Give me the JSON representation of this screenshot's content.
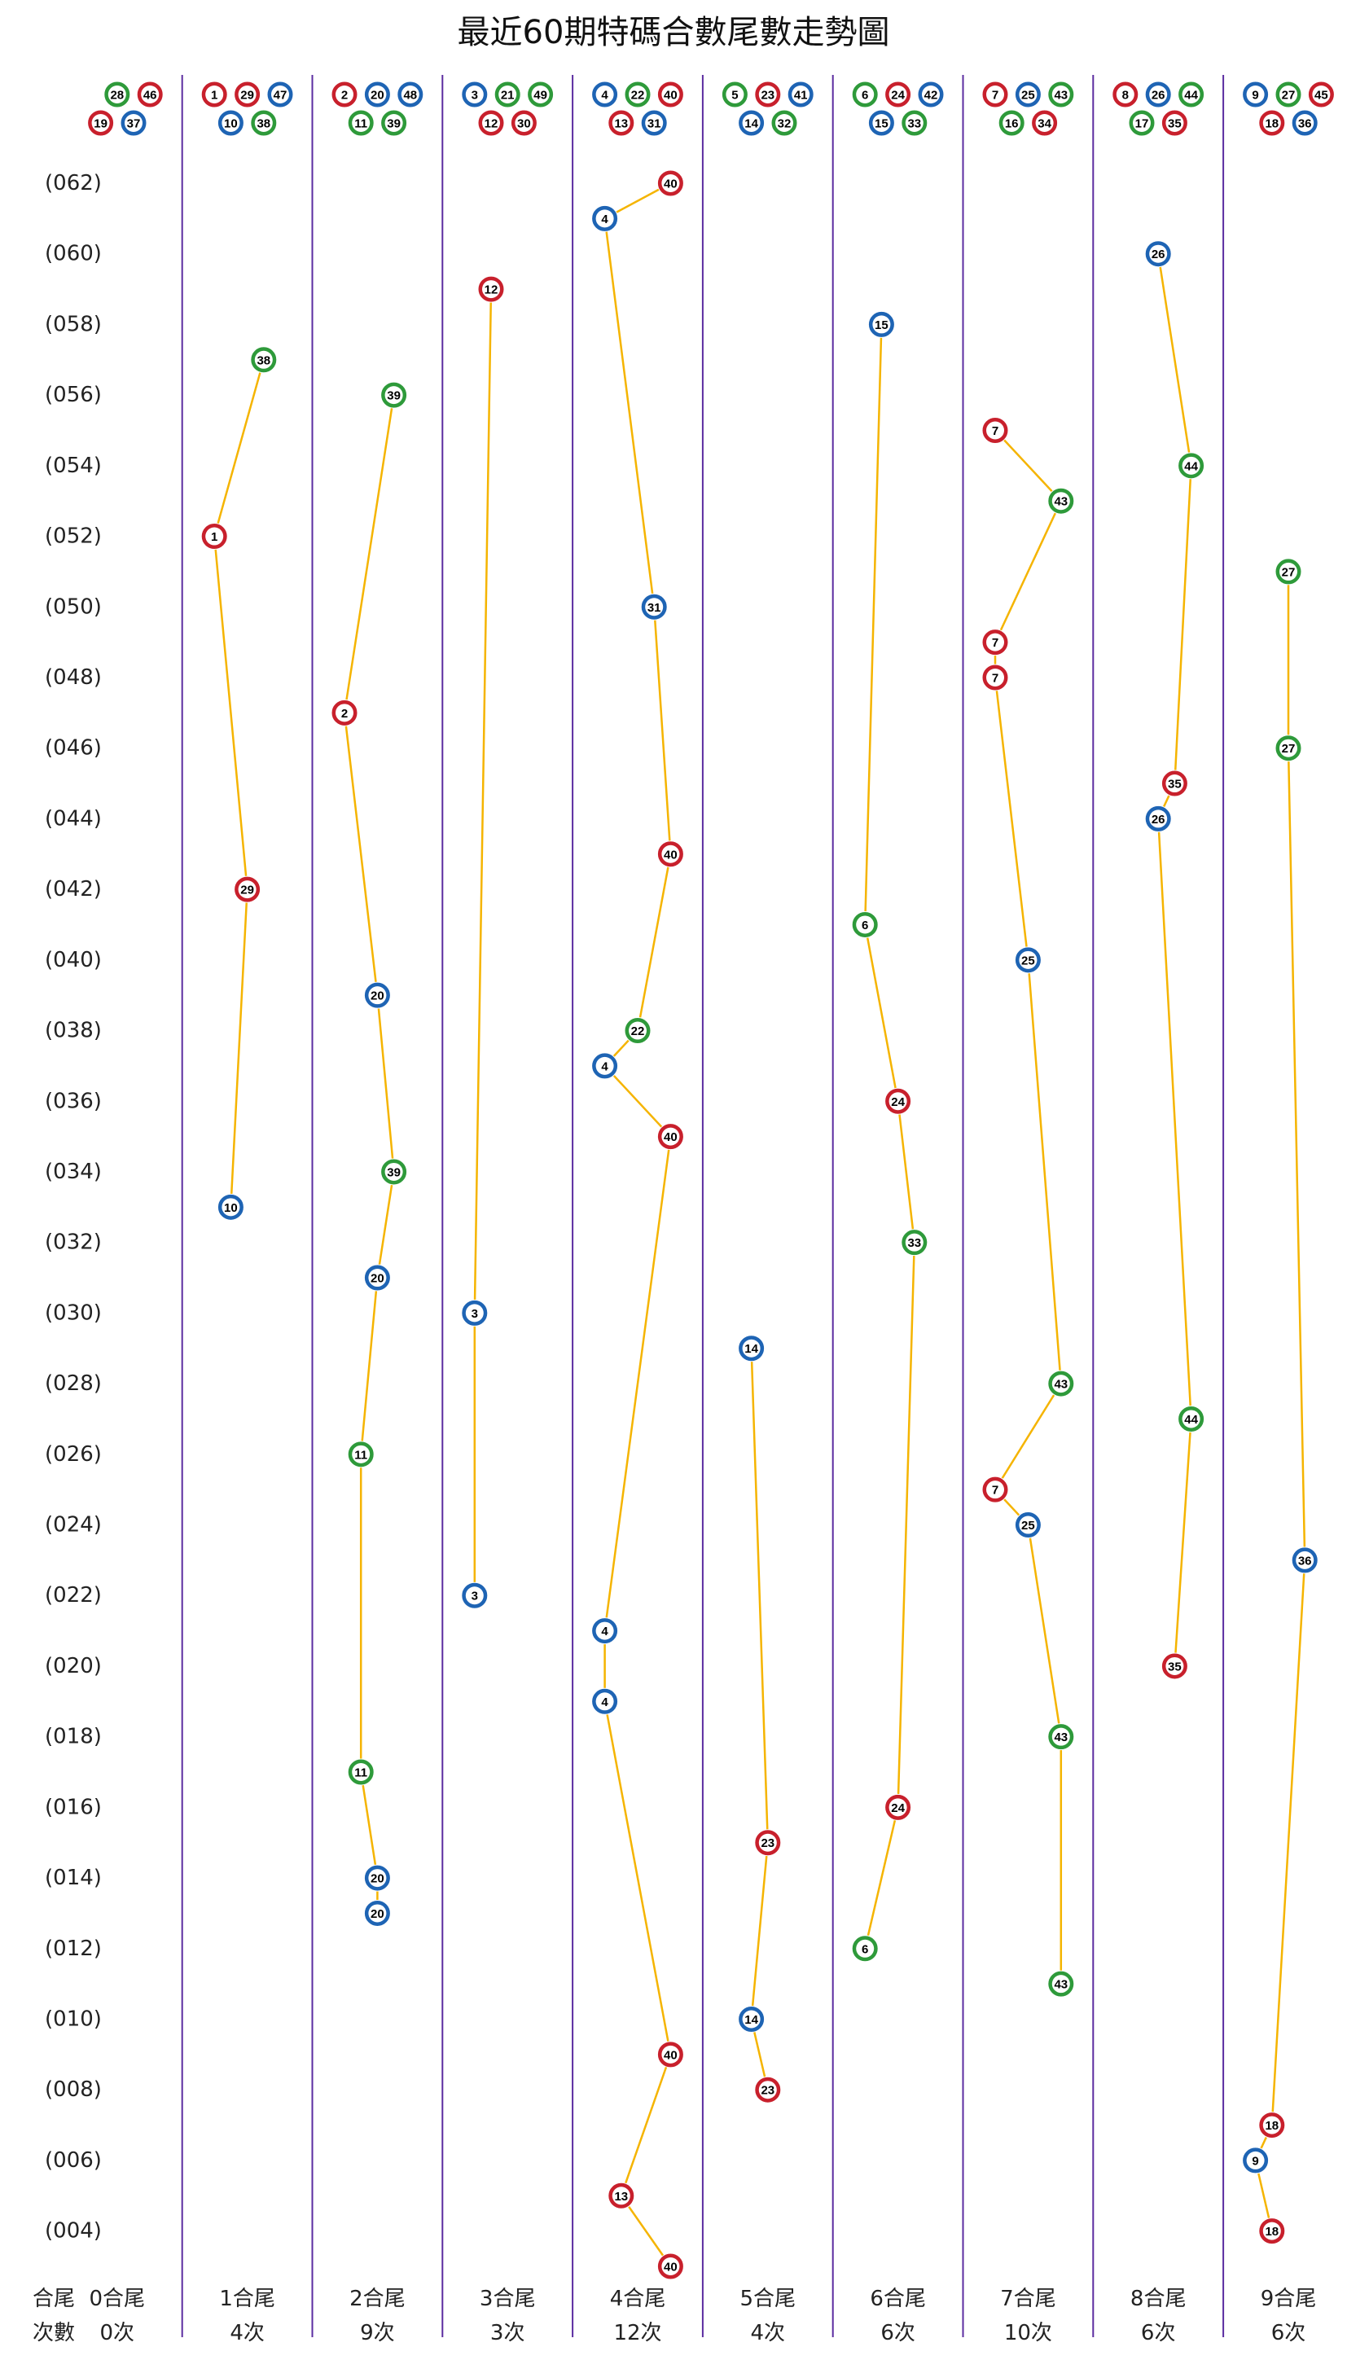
{
  "chart_data": {
    "type": "trend",
    "title": "最近60期特碼合數尾數走勢圖",
    "row_label": "合尾",
    "count_label": "次數",
    "line_color": "#f5b400",
    "separator_color": "#5b2ca0",
    "colors": {
      "red": "#c8202c",
      "blue": "#1e64b4",
      "green": "#2e9a3a"
    },
    "ylim": [
      62,
      3
    ],
    "yticks": [
      {
        "value": 62,
        "label": "(062)"
      },
      {
        "value": 60,
        "label": "(060)"
      },
      {
        "value": 58,
        "label": "(058)"
      },
      {
        "value": 56,
        "label": "(056)"
      },
      {
        "value": 54,
        "label": "(054)"
      },
      {
        "value": 52,
        "label": "(052)"
      },
      {
        "value": 50,
        "label": "(050)"
      },
      {
        "value": 48,
        "label": "(048)"
      },
      {
        "value": 46,
        "label": "(046)"
      },
      {
        "value": 44,
        "label": "(044)"
      },
      {
        "value": 42,
        "label": "(042)"
      },
      {
        "value": 40,
        "label": "(040)"
      },
      {
        "value": 38,
        "label": "(038)"
      },
      {
        "value": 36,
        "label": "(036)"
      },
      {
        "value": 34,
        "label": "(034)"
      },
      {
        "value": 32,
        "label": "(032)"
      },
      {
        "value": 30,
        "label": "(030)"
      },
      {
        "value": 28,
        "label": "(028)"
      },
      {
        "value": 26,
        "label": "(026)"
      },
      {
        "value": 24,
        "label": "(024)"
      },
      {
        "value": 22,
        "label": "(022)"
      },
      {
        "value": 20,
        "label": "(020)"
      },
      {
        "value": 18,
        "label": "(018)"
      },
      {
        "value": 16,
        "label": "(016)"
      },
      {
        "value": 14,
        "label": "(014)"
      },
      {
        "value": 12,
        "label": "(012)"
      },
      {
        "value": 10,
        "label": "(010)"
      },
      {
        "value": 8,
        "label": "(008)"
      },
      {
        "value": 6,
        "label": "(006)"
      },
      {
        "value": 4,
        "label": "(004)"
      }
    ],
    "columns": [
      {
        "label": "0合尾",
        "count": "0次",
        "balls": [
          {
            "number": 19,
            "color": "red"
          },
          {
            "number": 28,
            "color": "green"
          },
          {
            "number": 37,
            "color": "blue"
          },
          {
            "number": 46,
            "color": "red"
          }
        ],
        "points": []
      },
      {
        "label": "1合尾",
        "count": "4次",
        "balls": [
          {
            "number": 1,
            "color": "red"
          },
          {
            "number": 10,
            "color": "blue"
          },
          {
            "number": 29,
            "color": "red"
          },
          {
            "number": 38,
            "color": "green"
          },
          {
            "number": 47,
            "color": "blue"
          }
        ],
        "points": [
          {
            "period": 57,
            "number": 38
          },
          {
            "period": 52,
            "number": 1
          },
          {
            "period": 42,
            "number": 29
          },
          {
            "period": 33,
            "number": 10
          }
        ]
      },
      {
        "label": "2合尾",
        "count": "9次",
        "balls": [
          {
            "number": 2,
            "color": "red"
          },
          {
            "number": 11,
            "color": "green"
          },
          {
            "number": 20,
            "color": "blue"
          },
          {
            "number": 39,
            "color": "green"
          },
          {
            "number": 48,
            "color": "blue"
          }
        ],
        "points": [
          {
            "period": 56,
            "number": 39
          },
          {
            "period": 47,
            "number": 2
          },
          {
            "period": 39,
            "number": 20
          },
          {
            "period": 34,
            "number": 39
          },
          {
            "period": 31,
            "number": 20
          },
          {
            "period": 26,
            "number": 11
          },
          {
            "period": 17,
            "number": 11
          },
          {
            "period": 14,
            "number": 20
          },
          {
            "period": 13,
            "number": 20
          }
        ]
      },
      {
        "label": "3合尾",
        "count": "3次",
        "balls": [
          {
            "number": 3,
            "color": "blue"
          },
          {
            "number": 12,
            "color": "red"
          },
          {
            "number": 21,
            "color": "green"
          },
          {
            "number": 30,
            "color": "red"
          },
          {
            "number": 49,
            "color": "green"
          }
        ],
        "points": [
          {
            "period": 59,
            "number": 12
          },
          {
            "period": 30,
            "number": 3
          },
          {
            "period": 22,
            "number": 3
          }
        ]
      },
      {
        "label": "4合尾",
        "count": "12次",
        "balls": [
          {
            "number": 4,
            "color": "blue"
          },
          {
            "number": 13,
            "color": "red"
          },
          {
            "number": 22,
            "color": "green"
          },
          {
            "number": 31,
            "color": "blue"
          },
          {
            "number": 40,
            "color": "red"
          }
        ],
        "points": [
          {
            "period": 62,
            "number": 40
          },
          {
            "period": 61,
            "number": 4
          },
          {
            "period": 50,
            "number": 31
          },
          {
            "period": 43,
            "number": 40
          },
          {
            "period": 38,
            "number": 22
          },
          {
            "period": 37,
            "number": 4
          },
          {
            "period": 35,
            "number": 40
          },
          {
            "period": 21,
            "number": 4
          },
          {
            "period": 19,
            "number": 4
          },
          {
            "period": 9,
            "number": 40
          },
          {
            "period": 5,
            "number": 13
          },
          {
            "period": 3,
            "number": 40
          }
        ]
      },
      {
        "label": "5合尾",
        "count": "4次",
        "balls": [
          {
            "number": 5,
            "color": "green"
          },
          {
            "number": 14,
            "color": "blue"
          },
          {
            "number": 23,
            "color": "red"
          },
          {
            "number": 32,
            "color": "green"
          },
          {
            "number": 41,
            "color": "blue"
          }
        ],
        "points": [
          {
            "period": 29,
            "number": 14
          },
          {
            "period": 15,
            "number": 23
          },
          {
            "period": 10,
            "number": 14
          },
          {
            "period": 8,
            "number": 23
          }
        ]
      },
      {
        "label": "6合尾",
        "count": "6次",
        "balls": [
          {
            "number": 6,
            "color": "green"
          },
          {
            "number": 15,
            "color": "blue"
          },
          {
            "number": 24,
            "color": "red"
          },
          {
            "number": 33,
            "color": "green"
          },
          {
            "number": 42,
            "color": "blue"
          }
        ],
        "points": [
          {
            "period": 58,
            "number": 15
          },
          {
            "period": 41,
            "number": 6
          },
          {
            "period": 36,
            "number": 24
          },
          {
            "period": 32,
            "number": 33
          },
          {
            "period": 16,
            "number": 24
          },
          {
            "period": 12,
            "number": 6
          }
        ]
      },
      {
        "label": "7合尾",
        "count": "10次",
        "balls": [
          {
            "number": 7,
            "color": "red"
          },
          {
            "number": 16,
            "color": "green"
          },
          {
            "number": 25,
            "color": "blue"
          },
          {
            "number": 34,
            "color": "red"
          },
          {
            "number": 43,
            "color": "green"
          }
        ],
        "points": [
          {
            "period": 55,
            "number": 7
          },
          {
            "period": 53,
            "number": 43
          },
          {
            "period": 49,
            "number": 7
          },
          {
            "period": 48,
            "number": 7
          },
          {
            "period": 40,
            "number": 25
          },
          {
            "period": 28,
            "number": 43
          },
          {
            "period": 25,
            "number": 7
          },
          {
            "period": 24,
            "number": 25
          },
          {
            "period": 18,
            "number": 43
          },
          {
            "period": 11,
            "number": 43
          }
        ]
      },
      {
        "label": "8合尾",
        "count": "6次",
        "balls": [
          {
            "number": 8,
            "color": "red"
          },
          {
            "number": 17,
            "color": "green"
          },
          {
            "number": 26,
            "color": "blue"
          },
          {
            "number": 35,
            "color": "red"
          },
          {
            "number": 44,
            "color": "green"
          }
        ],
        "points": [
          {
            "period": 60,
            "number": 26
          },
          {
            "period": 54,
            "number": 44
          },
          {
            "period": 45,
            "number": 35
          },
          {
            "period": 44,
            "number": 26
          },
          {
            "period": 27,
            "number": 44
          },
          {
            "period": 20,
            "number": 35
          }
        ]
      },
      {
        "label": "9合尾",
        "count": "6次",
        "balls": [
          {
            "number": 9,
            "color": "blue"
          },
          {
            "number": 18,
            "color": "red"
          },
          {
            "number": 27,
            "color": "green"
          },
          {
            "number": 36,
            "color": "blue"
          },
          {
            "number": 45,
            "color": "red"
          }
        ],
        "points": [
          {
            "period": 51,
            "number": 27
          },
          {
            "period": 46,
            "number": 27
          },
          {
            "period": 23,
            "number": 36
          },
          {
            "period": 7,
            "number": 18
          },
          {
            "period": 6,
            "number": 9
          },
          {
            "period": 4,
            "number": 18
          }
        ]
      }
    ]
  }
}
